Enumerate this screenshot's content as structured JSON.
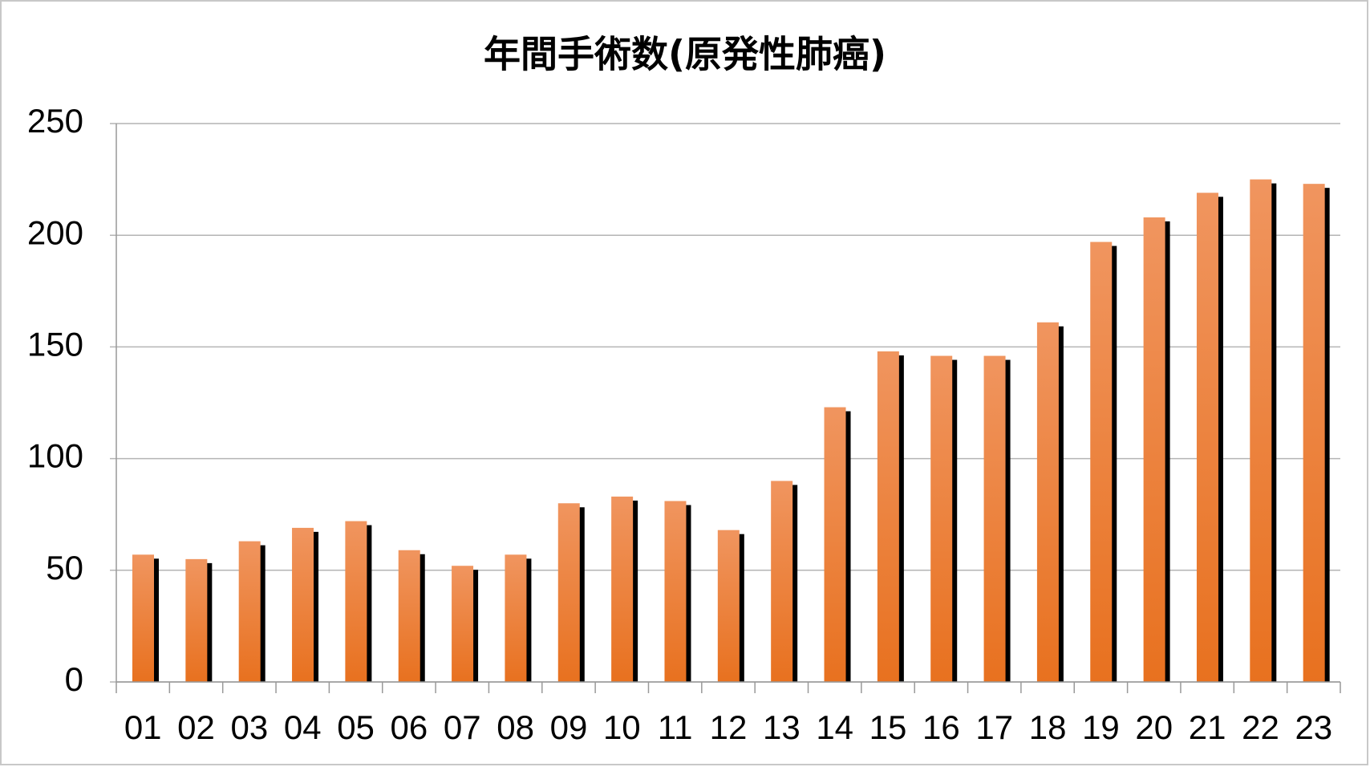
{
  "chart_data": {
    "type": "bar",
    "title": "年間手術数(原発性肺癌)",
    "categories": [
      "01",
      "02",
      "03",
      "04",
      "05",
      "06",
      "07",
      "08",
      "09",
      "10",
      "11",
      "12",
      "13",
      "14",
      "15",
      "16",
      "17",
      "18",
      "19",
      "20",
      "21",
      "22",
      "23"
    ],
    "values": [
      57,
      55,
      63,
      69,
      72,
      59,
      52,
      57,
      80,
      83,
      81,
      68,
      90,
      123,
      148,
      146,
      146,
      161,
      197,
      208,
      219,
      225,
      223
    ],
    "color": "#ed7d31",
    "ylim": [
      0,
      250
    ],
    "yticks": [
      0,
      50,
      100,
      150,
      200,
      250
    ],
    "grid": true
  }
}
